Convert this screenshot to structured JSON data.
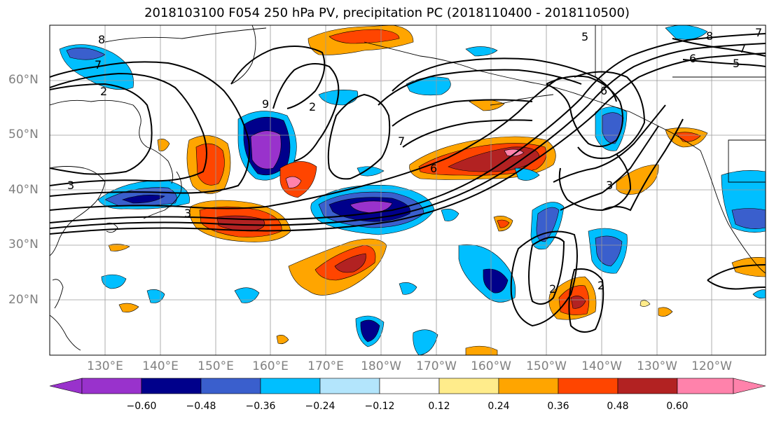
{
  "title": "2018103100 F054 250 hPa PV, precipitation PC (2018110400 - 2018110500)",
  "latitude_labels": [
    "60°N",
    "50°N",
    "40°N",
    "30°N",
    "20°N"
  ],
  "longitude_labels": [
    "130°E",
    "140°E",
    "150°E",
    "160°E",
    "170°E",
    "180°W",
    "170°W",
    "160°W",
    "150°W",
    "140°W",
    "130°W",
    "120°W"
  ],
  "colorbar": {
    "colors": [
      "#9932cc",
      "#00008b",
      "#3a5fcd",
      "#00bfff",
      "#b3e5fc",
      "#ffffff",
      "#ffec8b",
      "#ffa500",
      "#ff4500",
      "#b22222",
      "#ff82ab"
    ],
    "tick_labels": [
      "−0.60",
      "−0.48",
      "−0.36",
      "−0.24",
      "−0.12",
      "0.12",
      "0.24",
      "0.36",
      "0.48",
      "0.60"
    ]
  },
  "contour_labels": [
    "8",
    "7",
    "2",
    "3",
    "3",
    "6",
    "7",
    "6",
    "9",
    "2",
    "6",
    "7",
    "5",
    "2",
    "2",
    "8",
    "7",
    "3",
    "5"
  ]
}
